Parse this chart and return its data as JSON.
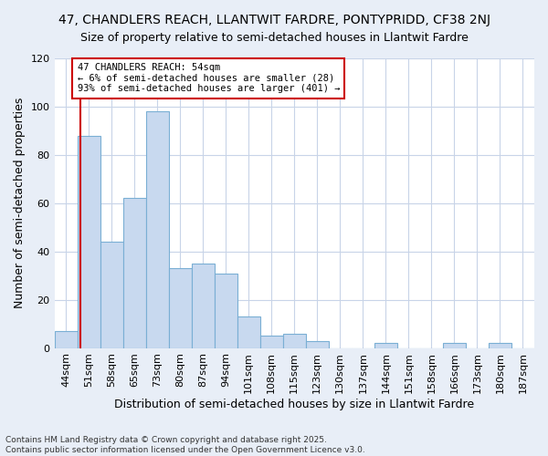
{
  "title": "47, CHANDLERS REACH, LLANTWIT FARDRE, PONTYPRIDD, CF38 2NJ",
  "subtitle": "Size of property relative to semi-detached houses in Llantwit Fardre",
  "xlabel": "Distribution of semi-detached houses by size in Llantwit Fardre",
  "ylabel": "Number of semi-detached properties",
  "bins": [
    "44sqm",
    "51sqm",
    "58sqm",
    "65sqm",
    "73sqm",
    "80sqm",
    "87sqm",
    "94sqm",
    "101sqm",
    "108sqm",
    "115sqm",
    "123sqm",
    "130sqm",
    "137sqm",
    "144sqm",
    "151sqm",
    "158sqm",
    "166sqm",
    "173sqm",
    "180sqm",
    "187sqm"
  ],
  "values": [
    7,
    88,
    44,
    62,
    98,
    33,
    35,
    31,
    13,
    5,
    6,
    3,
    0,
    0,
    2,
    0,
    0,
    2,
    0,
    2,
    0
  ],
  "bar_color": "#c8d9ef",
  "bar_edge_color": "#7aafd4",
  "property_bin_index": 1,
  "vline_color": "#cc0000",
  "annotation_text": "47 CHANDLERS REACH: 54sqm\n← 6% of semi-detached houses are smaller (28)\n93% of semi-detached houses are larger (401) →",
  "annotation_box_color": "#ffffff",
  "annotation_box_edge": "#cc0000",
  "ylim": [
    0,
    120
  ],
  "title_fontsize": 10,
  "xlabel_fontsize": 9,
  "ylabel_fontsize": 9,
  "tick_fontsize": 8,
  "footer": "Contains HM Land Registry data © Crown copyright and database right 2025.\nContains public sector information licensed under the Open Government Licence v3.0.",
  "bg_color": "#e8eef7",
  "plot_bg_color": "#ffffff"
}
